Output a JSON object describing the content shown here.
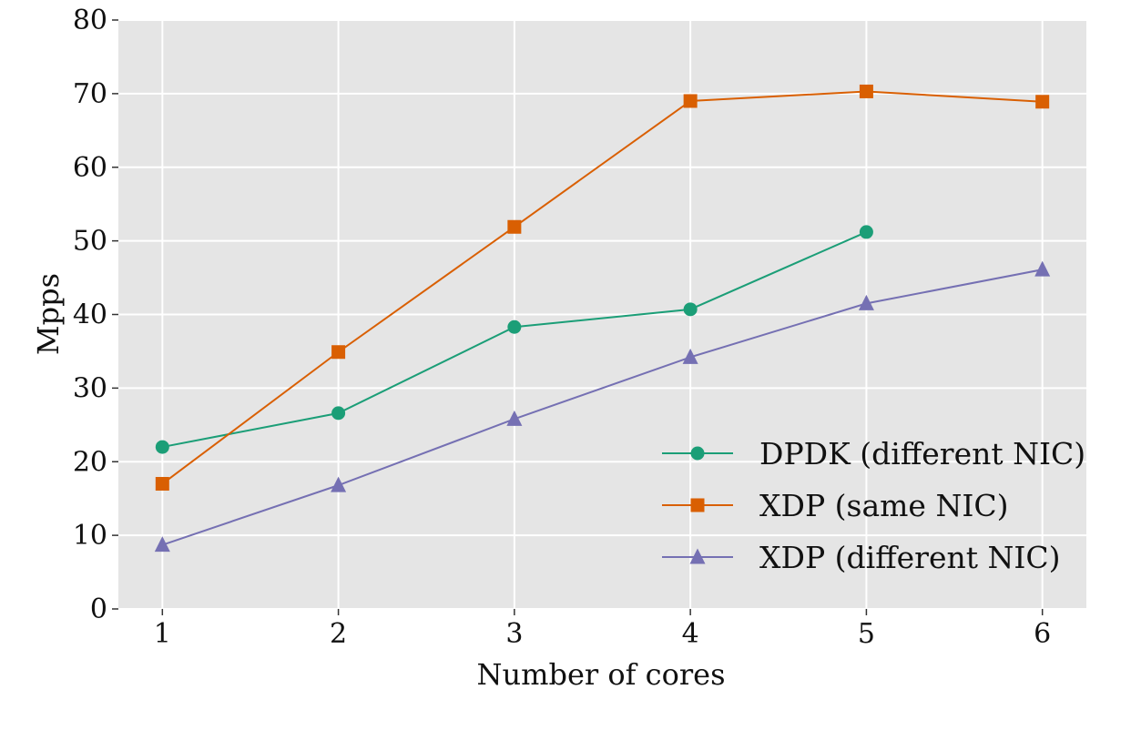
{
  "chart_data": {
    "type": "line",
    "title": "",
    "xlabel": "Number of cores",
    "ylabel": "Mpps",
    "x": [
      1,
      2,
      3,
      4,
      5,
      6
    ],
    "xlim": [
      0.75,
      6.25
    ],
    "ylim": [
      0,
      80
    ],
    "xticks": [
      "1",
      "2",
      "3",
      "4",
      "5",
      "6"
    ],
    "yticks": [
      "0",
      "10",
      "20",
      "30",
      "40",
      "50",
      "60",
      "70",
      "80"
    ],
    "grid": true,
    "background": "#e5e5e5",
    "legend_position": "lower-right",
    "series": [
      {
        "name": "DPDK (different NIC)",
        "marker": "circle",
        "color": "#1b9e77",
        "x": [
          1,
          2,
          3,
          4,
          5
        ],
        "values": [
          22.0,
          26.6,
          38.3,
          40.7,
          51.2
        ]
      },
      {
        "name": "XDP (same NIC)",
        "marker": "square",
        "color": "#d95f02",
        "x": [
          1,
          2,
          3,
          4,
          5,
          6
        ],
        "values": [
          17.0,
          34.9,
          51.9,
          69.0,
          70.3,
          68.9
        ]
      },
      {
        "name": "XDP (different NIC)",
        "marker": "triangle",
        "color": "#7570b3",
        "x": [
          1,
          2,
          3,
          4,
          5,
          6
        ],
        "values": [
          8.7,
          16.8,
          25.8,
          34.2,
          41.5,
          46.1
        ]
      }
    ]
  }
}
